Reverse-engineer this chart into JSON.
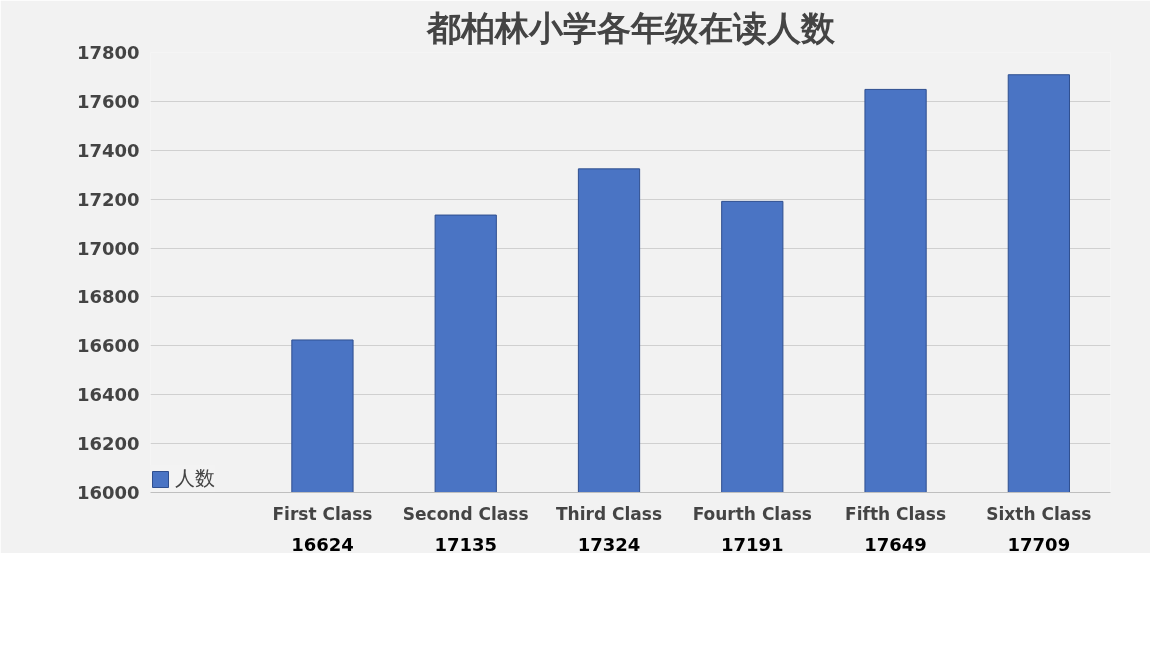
{
  "chart_data": {
    "type": "bar",
    "title": "都柏林小学各年级在读人数",
    "categories": [
      "First Class",
      "Second Class",
      "Third Class",
      "Fourth Class",
      "Fifth Class",
      "Sixth Class"
    ],
    "series": [
      {
        "name": "人数",
        "color": "#4a74c4",
        "values": [
          16624,
          17135,
          17324,
          17191,
          17649,
          17709
        ]
      }
    ],
    "ylim": [
      16000,
      17800
    ],
    "yticks": [
      16000,
      16200,
      16400,
      16600,
      16800,
      17000,
      17200,
      17400,
      17600,
      17800
    ],
    "grid": "y",
    "data_labels": true,
    "legend": "bottom left"
  }
}
